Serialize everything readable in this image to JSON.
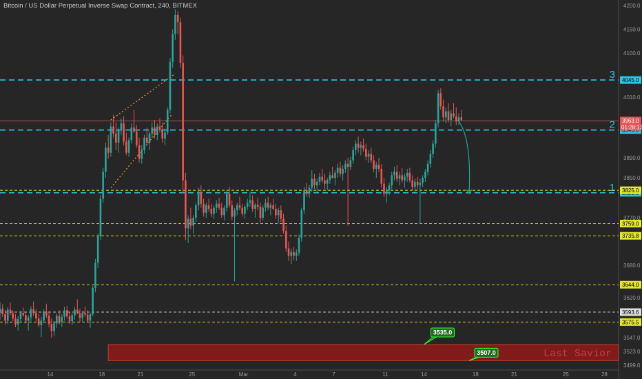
{
  "header": {
    "title": "Bitcoin / US Dollar Perpetual Inverse Swap Contract, 240, BITMEX"
  },
  "colors": {
    "background": "#262626",
    "up": "#26a69a",
    "down": "#ef5350",
    "cyan_level": "#29c7e6",
    "yellow_level": "#e6e62a",
    "white_level": "#dddddd",
    "red_level": "#e06666",
    "zone": "#8b1a1a",
    "callout": "#1e6b1e",
    "callout_border": "#33ff33",
    "trend": "#f0a030",
    "arrow": "#26a69a"
  },
  "chart_data": {
    "type": "candlestick",
    "title": "Bitcoin / US Dollar Perpetual Inverse Swap Contract, 240, BITMEX",
    "interval": "240",
    "ylim": [
      3490,
      4210
    ],
    "y_ticks": [
      4200.0,
      4150.0,
      4100.0,
      4045.0,
      4010.0,
      3963.0,
      3945.0,
      3890.0,
      3850.0,
      3825.0,
      3820.0,
      3770.0,
      3759.0,
      3735.8,
      3680.0,
      3644.0,
      3620.0,
      3593.6,
      3575.5,
      3547.0,
      3523.0,
      3499.0
    ],
    "x_ticks": [
      {
        "label": "14",
        "t": 14
      },
      {
        "label": "18",
        "t": 18
      },
      {
        "label": "21",
        "t": 21
      },
      {
        "label": "25",
        "t": 25
      },
      {
        "label": "Mar",
        "t": 29
      },
      {
        "label": "4",
        "t": 33
      },
      {
        "label": "7",
        "t": 36
      },
      {
        "label": "11",
        "t": 40
      },
      {
        "label": "14",
        "t": 43
      },
      {
        "label": "18",
        "t": 47
      },
      {
        "label": "21",
        "t": 50
      },
      {
        "label": "25",
        "t": 54
      },
      {
        "label": "28",
        "t": 57
      }
    ],
    "xlim": [
      10.1,
      58.1
    ],
    "levels": [
      {
        "name": "level-3",
        "label": "3",
        "value": 4045.0,
        "tag": "4045.0",
        "style": "cyan",
        "dash": "8,5"
      },
      {
        "name": "level-2",
        "label": "2",
        "value": 3945.0,
        "tag": "3945.0",
        "style": "cyan",
        "dash": "8,5"
      },
      {
        "name": "level-1",
        "label": "1",
        "value": 3820.0,
        "tag": "3820.0",
        "style": "cyan",
        "dash": "8,5"
      },
      {
        "name": "level-3825",
        "label": "",
        "value": 3825.0,
        "tag": "3825.0",
        "style": "yellow",
        "dash": "4,3"
      },
      {
        "name": "level-3759",
        "label": "",
        "value": 3759.0,
        "tag": "3759.0",
        "style": "yellow",
        "dash": "4,3"
      },
      {
        "name": "level-3735",
        "label": "",
        "value": 3735.8,
        "tag": "3735.8",
        "style": "yellow",
        "dash": "4,3"
      },
      {
        "name": "level-3644",
        "label": "",
        "value": 3644.0,
        "tag": "3644.0",
        "style": "yellow",
        "dash": "4,3"
      },
      {
        "name": "level-3593",
        "label": "",
        "value": 3593.6,
        "tag": "3593.6",
        "style": "white",
        "dash": "4,3"
      },
      {
        "name": "level-3575",
        "label": "",
        "value": 3575.5,
        "tag": "3575.5",
        "style": "yellow",
        "dash": "4,3"
      }
    ],
    "current_price": {
      "value": 3963.0,
      "tag": "3963.0",
      "countdown": "01:28:13"
    },
    "zone": {
      "t_start": 18.5,
      "t_end": 58.1,
      "low": 3507.0,
      "high": 3535.0
    },
    "callouts": [
      {
        "label": "3535.0",
        "t": 43.0,
        "value": 3535.0
      },
      {
        "label": "3507.0",
        "t": 46.5,
        "value": 3507.0
      }
    ],
    "watermark": "Last Savior",
    "trendlines": [
      {
        "t1": 18.7,
        "v1": 3965,
        "t2": 23.7,
        "v2": 4058
      },
      {
        "t1": 18.7,
        "v1": 3830,
        "t2": 23.4,
        "v2": 3975
      }
    ],
    "forecast_arrow": {
      "t1": 45.6,
      "v1": 3965,
      "t2": 46.5,
      "v2": 3818
    },
    "candles": [
      [
        10.1,
        3593,
        3612,
        3580,
        3600
      ],
      [
        10.3,
        3600,
        3608,
        3585,
        3590
      ],
      [
        10.5,
        3590,
        3598,
        3570,
        3578
      ],
      [
        10.7,
        3578,
        3603,
        3572,
        3598
      ],
      [
        10.9,
        3598,
        3611,
        3588,
        3592
      ],
      [
        11.1,
        3592,
        3597,
        3577,
        3582
      ],
      [
        11.3,
        3582,
        3590,
        3566,
        3571
      ],
      [
        11.5,
        3571,
        3586,
        3560,
        3581
      ],
      [
        11.7,
        3581,
        3596,
        3574,
        3592
      ],
      [
        11.9,
        3592,
        3602,
        3585,
        3588
      ],
      [
        12.1,
        3588,
        3594,
        3573,
        3578
      ],
      [
        12.3,
        3578,
        3588,
        3560,
        3584
      ],
      [
        12.5,
        3584,
        3604,
        3577,
        3599
      ],
      [
        12.7,
        3599,
        3613,
        3587,
        3592
      ],
      [
        12.9,
        3592,
        3599,
        3577,
        3582
      ],
      [
        13.1,
        3582,
        3590,
        3566,
        3570
      ],
      [
        13.3,
        3570,
        3585,
        3548,
        3578
      ],
      [
        13.5,
        3578,
        3599,
        3573,
        3595
      ],
      [
        13.7,
        3595,
        3609,
        3583,
        3587
      ],
      [
        13.9,
        3587,
        3595,
        3566,
        3572
      ],
      [
        14.1,
        3572,
        3582,
        3547,
        3559
      ],
      [
        14.3,
        3559,
        3577,
        3550,
        3573
      ],
      [
        14.5,
        3573,
        3591,
        3565,
        3587
      ],
      [
        14.7,
        3587,
        3597,
        3571,
        3576
      ],
      [
        14.9,
        3576,
        3590,
        3566,
        3585
      ],
      [
        15.1,
        3585,
        3603,
        3578,
        3597
      ],
      [
        15.3,
        3597,
        3605,
        3582,
        3586
      ],
      [
        15.5,
        3586,
        3593,
        3572,
        3577
      ],
      [
        15.7,
        3577,
        3592,
        3570,
        3588
      ],
      [
        15.9,
        3588,
        3603,
        3580,
        3598
      ],
      [
        16.1,
        3598,
        3617,
        3590,
        3591
      ],
      [
        16.3,
        3591,
        3600,
        3576,
        3583
      ],
      [
        16.5,
        3583,
        3596,
        3575,
        3592
      ],
      [
        16.7,
        3592,
        3604,
        3585,
        3589
      ],
      [
        16.9,
        3589,
        3597,
        3574,
        3578
      ],
      [
        17.1,
        3578,
        3592,
        3565,
        3590
      ],
      [
        17.3,
        3590,
        3642,
        3586,
        3638
      ],
      [
        17.5,
        3638,
        3692,
        3630,
        3685
      ],
      [
        17.7,
        3685,
        3740,
        3675,
        3735
      ],
      [
        17.9,
        3735,
        3815,
        3728,
        3808
      ],
      [
        18.1,
        3808,
        3870,
        3800,
        3862
      ],
      [
        18.3,
        3862,
        3920,
        3850,
        3910
      ],
      [
        18.5,
        3910,
        3935,
        3888,
        3900
      ],
      [
        18.7,
        3900,
        3960,
        3892,
        3952
      ],
      [
        18.9,
        3952,
        3975,
        3930,
        3938
      ],
      [
        19.1,
        3938,
        3960,
        3905,
        3920
      ],
      [
        19.3,
        3920,
        3950,
        3900,
        3944
      ],
      [
        19.5,
        3944,
        3968,
        3935,
        3958
      ],
      [
        19.7,
        3958,
        3972,
        3915,
        3922
      ],
      [
        19.9,
        3922,
        3940,
        3895,
        3900
      ],
      [
        20.1,
        3900,
        3930,
        3892,
        3925
      ],
      [
        20.3,
        3925,
        3958,
        3918,
        3950
      ],
      [
        20.5,
        3950,
        3985,
        3940,
        3942
      ],
      [
        20.7,
        3942,
        3955,
        3910,
        3915
      ],
      [
        20.9,
        3915,
        3930,
        3880,
        3888
      ],
      [
        21.1,
        3888,
        3915,
        3878,
        3905
      ],
      [
        21.3,
        3905,
        3935,
        3898,
        3930
      ],
      [
        21.5,
        3930,
        3950,
        3915,
        3920
      ],
      [
        21.7,
        3920,
        3942,
        3905,
        3938
      ],
      [
        21.9,
        3938,
        3960,
        3930,
        3950
      ],
      [
        22.1,
        3950,
        3965,
        3928,
        3935
      ],
      [
        22.3,
        3935,
        3958,
        3925,
        3952
      ],
      [
        22.5,
        3952,
        3968,
        3940,
        3945
      ],
      [
        22.7,
        3945,
        3960,
        3920,
        3928
      ],
      [
        22.9,
        3928,
        3948,
        3915,
        3940
      ],
      [
        23.1,
        3940,
        3990,
        3935,
        3985
      ],
      [
        23.3,
        3985,
        4090,
        3978,
        4082
      ],
      [
        23.5,
        4082,
        4150,
        4070,
        4140
      ],
      [
        23.7,
        4140,
        4192,
        4128,
        4180
      ],
      [
        23.9,
        4180,
        4188,
        4140,
        4165
      ],
      [
        24.1,
        4165,
        4175,
        4070,
        4080
      ],
      [
        24.3,
        4080,
        4095,
        3820,
        3845
      ],
      [
        24.5,
        3845,
        3860,
        3728,
        3750
      ],
      [
        24.7,
        3750,
        3775,
        3722,
        3768
      ],
      [
        24.9,
        3768,
        3790,
        3748,
        3755
      ],
      [
        25.1,
        3755,
        3775,
        3740,
        3770
      ],
      [
        25.3,
        3770,
        3800,
        3762,
        3795
      ],
      [
        25.5,
        3795,
        3830,
        3785,
        3822
      ],
      [
        25.7,
        3822,
        3835,
        3790,
        3798
      ],
      [
        25.9,
        3798,
        3808,
        3772,
        3780
      ],
      [
        26.1,
        3780,
        3800,
        3770,
        3795
      ],
      [
        26.3,
        3795,
        3808,
        3782,
        3788
      ],
      [
        26.5,
        3788,
        3798,
        3772,
        3778
      ],
      [
        26.7,
        3778,
        3795,
        3768,
        3790
      ],
      [
        26.9,
        3790,
        3805,
        3780,
        3798
      ],
      [
        27.1,
        3798,
        3810,
        3785,
        3790
      ],
      [
        27.3,
        3790,
        3800,
        3770,
        3775
      ],
      [
        27.5,
        3775,
        3795,
        3765,
        3790
      ],
      [
        27.7,
        3790,
        3825,
        3782,
        3818
      ],
      [
        27.9,
        3818,
        3832,
        3790,
        3795
      ],
      [
        28.1,
        3795,
        3805,
        3765,
        3772
      ],
      [
        28.3,
        3772,
        3790,
        3650,
        3785
      ],
      [
        28.5,
        3785,
        3800,
        3775,
        3795
      ],
      [
        28.7,
        3795,
        3812,
        3785,
        3790
      ],
      [
        28.9,
        3790,
        3798,
        3772,
        3778
      ],
      [
        29.1,
        3778,
        3795,
        3768,
        3792
      ],
      [
        29.3,
        3792,
        3808,
        3785,
        3800
      ],
      [
        29.5,
        3800,
        3822,
        3792,
        3805
      ],
      [
        29.7,
        3805,
        3815,
        3782,
        3788
      ],
      [
        29.9,
        3788,
        3800,
        3770,
        3796
      ],
      [
        30.1,
        3796,
        3810,
        3785,
        3792
      ],
      [
        30.3,
        3792,
        3800,
        3760,
        3770
      ],
      [
        30.5,
        3770,
        3795,
        3765,
        3790
      ],
      [
        30.7,
        3790,
        3808,
        3782,
        3800
      ],
      [
        30.9,
        3800,
        3812,
        3785,
        3790
      ],
      [
        31.1,
        3790,
        3800,
        3775,
        3795
      ],
      [
        31.3,
        3795,
        3808,
        3785,
        3788
      ],
      [
        31.5,
        3788,
        3798,
        3768,
        3775
      ],
      [
        31.7,
        3775,
        3790,
        3760,
        3785
      ],
      [
        31.9,
        3785,
        3795,
        3762,
        3768
      ],
      [
        32.1,
        3768,
        3778,
        3740,
        3745
      ],
      [
        32.3,
        3745,
        3755,
        3705,
        3712
      ],
      [
        32.5,
        3712,
        3725,
        3688,
        3698
      ],
      [
        32.7,
        3698,
        3712,
        3682,
        3705
      ],
      [
        32.9,
        3705,
        3715,
        3690,
        3698
      ],
      [
        33.1,
        3698,
        3710,
        3688,
        3704
      ],
      [
        33.3,
        3704,
        3738,
        3698,
        3732
      ],
      [
        33.5,
        3732,
        3790,
        3725,
        3785
      ],
      [
        33.7,
        3785,
        3832,
        3778,
        3825
      ],
      [
        33.9,
        3825,
        3840,
        3812,
        3818
      ],
      [
        34.1,
        3818,
        3835,
        3810,
        3830
      ],
      [
        34.3,
        3830,
        3865,
        3822,
        3848
      ],
      [
        34.5,
        3848,
        3858,
        3828,
        3835
      ],
      [
        34.7,
        3835,
        3848,
        3820,
        3842
      ],
      [
        34.9,
        3842,
        3860,
        3835,
        3852
      ],
      [
        35.1,
        3852,
        3868,
        3840,
        3845
      ],
      [
        35.3,
        3845,
        3858,
        3828,
        3838
      ],
      [
        35.5,
        3838,
        3850,
        3825,
        3846
      ],
      [
        35.7,
        3846,
        3862,
        3838,
        3855
      ],
      [
        35.9,
        3855,
        3872,
        3848,
        3850
      ],
      [
        36.1,
        3850,
        3865,
        3835,
        3860
      ],
      [
        36.3,
        3860,
        3878,
        3850,
        3870
      ],
      [
        36.5,
        3870,
        3882,
        3852,
        3858
      ],
      [
        36.7,
        3858,
        3875,
        3845,
        3868
      ],
      [
        36.9,
        3868,
        3885,
        3860,
        3878
      ],
      [
        37.1,
        3878,
        3890,
        3755,
        3872
      ],
      [
        37.3,
        3872,
        3892,
        3865,
        3885
      ],
      [
        37.5,
        3885,
        3912,
        3878,
        3905
      ],
      [
        37.7,
        3905,
        3925,
        3895,
        3918
      ],
      [
        37.9,
        3918,
        3932,
        3900,
        3910
      ],
      [
        38.1,
        3910,
        3922,
        3895,
        3915
      ],
      [
        38.3,
        3915,
        3928,
        3902,
        3908
      ],
      [
        38.5,
        3908,
        3918,
        3885,
        3892
      ],
      [
        38.7,
        3892,
        3905,
        3880,
        3898
      ],
      [
        38.9,
        3898,
        3910,
        3880,
        3885
      ],
      [
        39.1,
        3885,
        3895,
        3862,
        3868
      ],
      [
        39.3,
        3868,
        3882,
        3850,
        3876
      ],
      [
        39.5,
        3876,
        3890,
        3862,
        3868
      ],
      [
        39.7,
        3868,
        3878,
        3830,
        3838
      ],
      [
        39.9,
        3838,
        3850,
        3812,
        3818
      ],
      [
        40.1,
        3818,
        3832,
        3800,
        3825
      ],
      [
        40.3,
        3825,
        3840,
        3815,
        3835
      ],
      [
        40.5,
        3835,
        3862,
        3828,
        3855
      ],
      [
        40.7,
        3855,
        3872,
        3845,
        3862
      ],
      [
        40.9,
        3862,
        3875,
        3842,
        3848
      ],
      [
        41.1,
        3848,
        3862,
        3835,
        3855
      ],
      [
        41.3,
        3855,
        3870,
        3840,
        3845
      ],
      [
        41.5,
        3845,
        3858,
        3830,
        3852
      ],
      [
        41.7,
        3852,
        3868,
        3842,
        3860
      ],
      [
        41.9,
        3860,
        3870,
        3840,
        3845
      ],
      [
        42.1,
        3845,
        3855,
        3825,
        3832
      ],
      [
        42.3,
        3832,
        3848,
        3822,
        3842
      ],
      [
        42.5,
        3842,
        3852,
        3828,
        3835
      ],
      [
        42.7,
        3835,
        3848,
        3758,
        3840
      ],
      [
        42.9,
        3840,
        3855,
        3832,
        3850
      ],
      [
        43.1,
        3850,
        3868,
        3842,
        3862
      ],
      [
        43.3,
        3862,
        3885,
        3855,
        3878
      ],
      [
        43.5,
        3878,
        3905,
        3870,
        3898
      ],
      [
        43.7,
        3898,
        3925,
        3890,
        3918
      ],
      [
        43.9,
        3918,
        3965,
        3910,
        3958
      ],
      [
        44.1,
        3958,
        4025,
        3950,
        4018
      ],
      [
        44.3,
        4018,
        4028,
        3985,
        3992
      ],
      [
        44.5,
        3992,
        4005,
        3962,
        3970
      ],
      [
        44.7,
        3970,
        3990,
        3958,
        3982
      ],
      [
        44.9,
        3982,
        3998,
        3960,
        3965
      ],
      [
        45.1,
        3965,
        3985,
        3952,
        3978
      ],
      [
        45.3,
        3978,
        3998,
        3968,
        3972
      ],
      [
        45.5,
        3972,
        3990,
        3955,
        3962
      ],
      [
        45.7,
        3962,
        3978,
        3955,
        3970
      ],
      [
        45.9,
        3970,
        3985,
        3962,
        3965
      ]
    ]
  }
}
